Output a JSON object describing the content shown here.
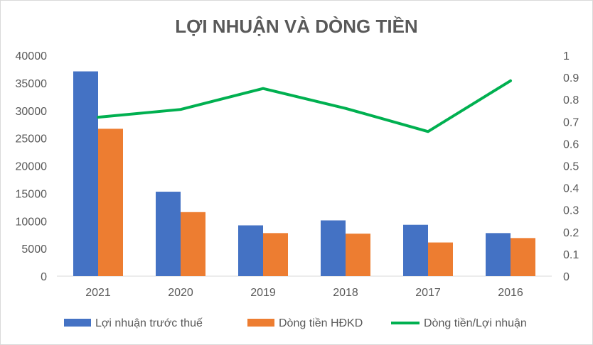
{
  "chart_data": {
    "type": "bar",
    "title": "LỢI NHUẬN VÀ DÒNG TIỀN",
    "categories": [
      "2021",
      "2020",
      "2019",
      "2018",
      "2017",
      "2016"
    ],
    "series": [
      {
        "name": "Lợi nhuận trước thuế",
        "kind": "bar",
        "axis": "left",
        "color": "#4472C4",
        "values": [
          37100,
          15300,
          9200,
          10100,
          9300,
          7800
        ]
      },
      {
        "name": "Dòng tiền HĐKD",
        "kind": "bar",
        "axis": "left",
        "color": "#ED7D31",
        "values": [
          26700,
          11600,
          7800,
          7700,
          6100,
          6900
        ]
      },
      {
        "name": "Dòng tiền/Lợi nhuận",
        "kind": "line",
        "axis": "right",
        "color": "#00B050",
        "values": [
          0.72,
          0.755,
          0.85,
          0.76,
          0.655,
          0.885
        ]
      }
    ],
    "y_left": {
      "min": 0,
      "max": 40000,
      "ticks": [
        "0",
        "5000",
        "10000",
        "15000",
        "20000",
        "25000",
        "30000",
        "35000",
        "40000"
      ]
    },
    "y_right": {
      "min": 0,
      "max": 1,
      "ticks": [
        "0",
        "0.1",
        "0.2",
        "0.3",
        "0.4",
        "0.5",
        "0.6",
        "0.7",
        "0.8",
        "0.9",
        "1"
      ]
    },
    "grid": false,
    "legend_position": "bottom"
  }
}
